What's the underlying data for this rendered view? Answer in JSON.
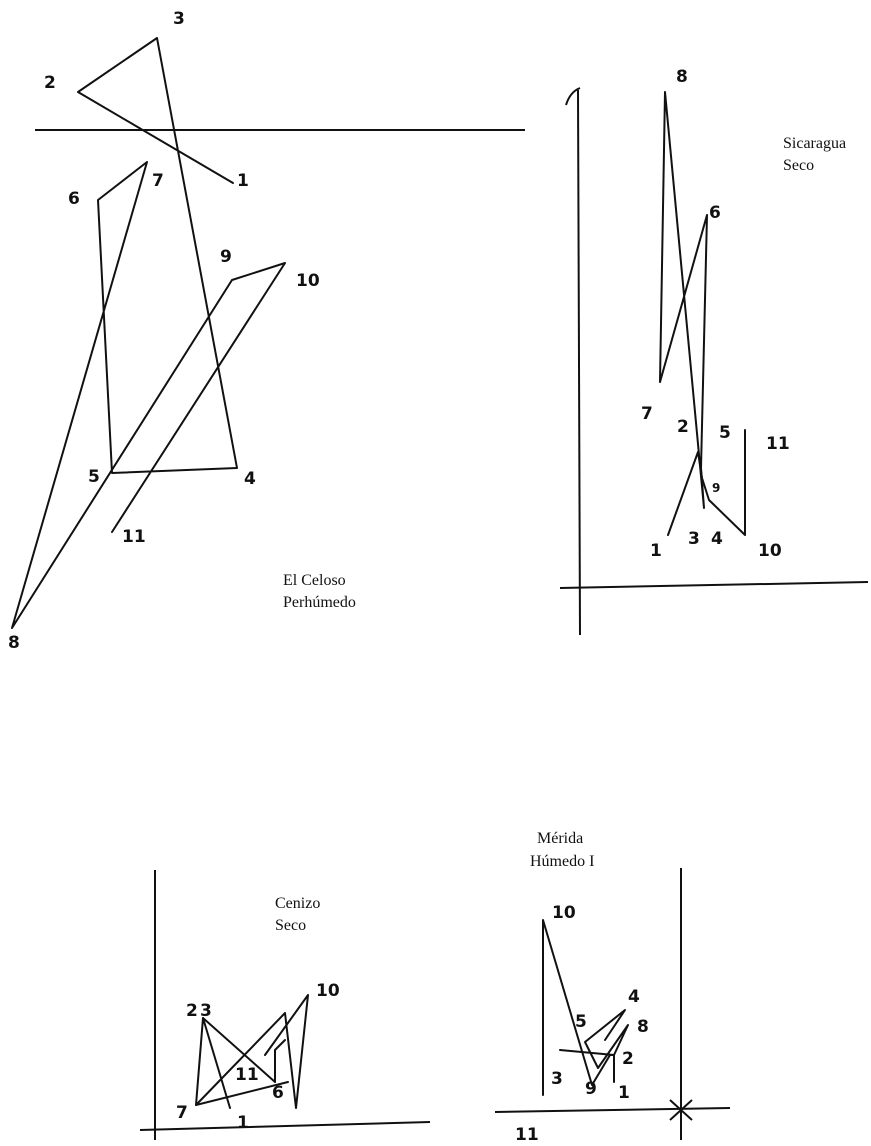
{
  "panels": {
    "celoso": {
      "name": "El Celoso",
      "climate": "Perhúmedo",
      "points": [
        "1",
        "2",
        "3",
        "4",
        "5",
        "6",
        "7",
        "8",
        "9",
        "10",
        "11"
      ]
    },
    "sicaragua": {
      "name": "Sicaragua",
      "climate": "Seco",
      "points": [
        "1",
        "2",
        "3",
        "4",
        "5",
        "6",
        "7",
        "8",
        "9",
        "10",
        "11"
      ]
    },
    "cenizo": {
      "name": "Cenizo",
      "climate": "Seco",
      "points": [
        "1",
        "2",
        "3",
        "6",
        "7",
        "10",
        "11"
      ]
    },
    "merida": {
      "name": "Mérida",
      "climate": "Húmedo I",
      "points": [
        "1",
        "2",
        "3",
        "4",
        "5",
        "8",
        "9",
        "10",
        "11"
      ]
    }
  }
}
